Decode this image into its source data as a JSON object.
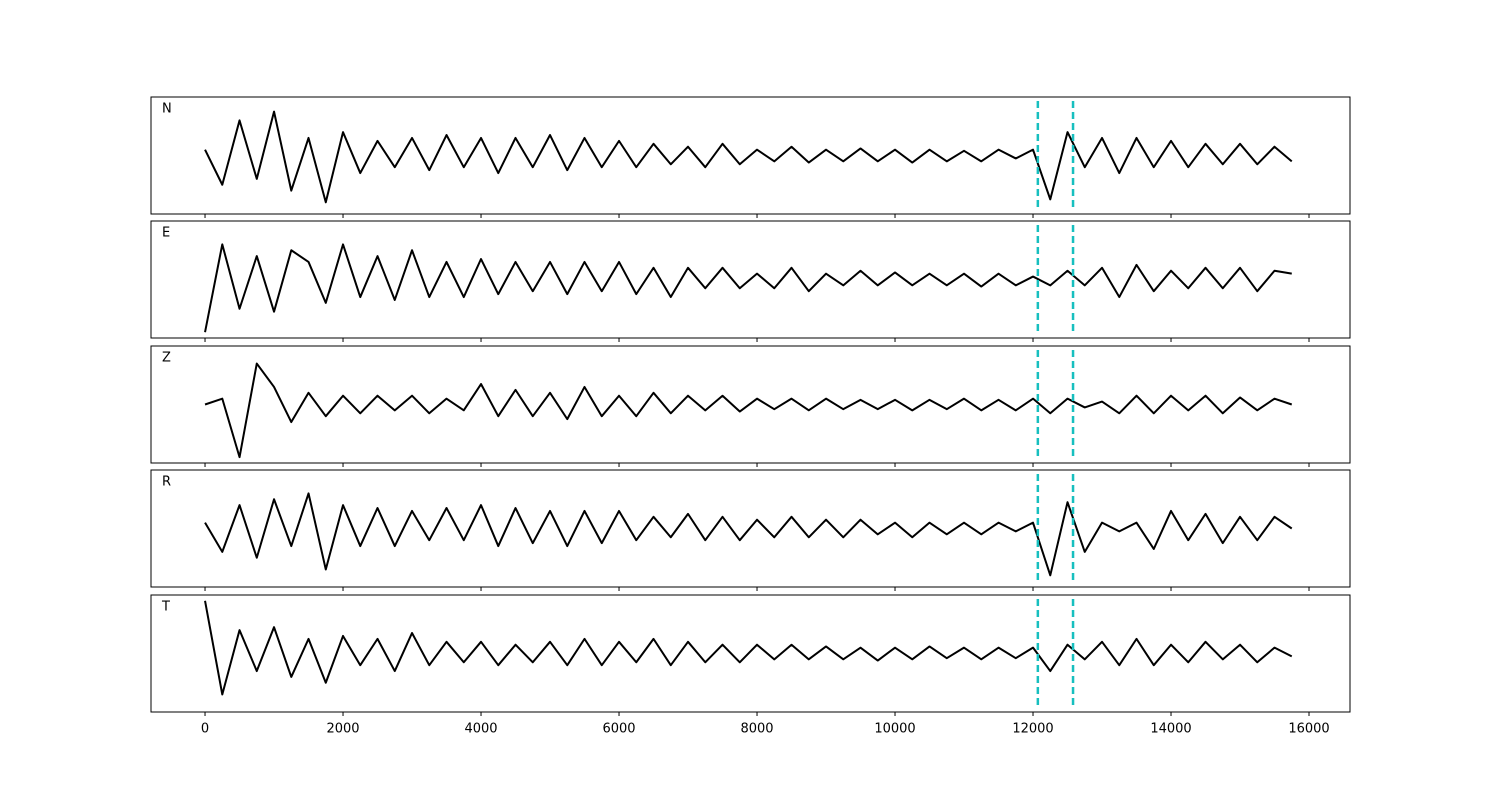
{
  "chart_data": [
    {
      "type": "line",
      "label": "N",
      "color": "#000000",
      "x": [
        0,
        250,
        500,
        750,
        1000,
        1250,
        1500,
        1750,
        2000,
        2250,
        2500,
        2750,
        3000,
        3250,
        3500,
        3750,
        4000,
        4250,
        4500,
        4750,
        5000,
        5250,
        5500,
        5750,
        6000,
        6250,
        6500,
        6750,
        7000,
        7250,
        7500,
        7750,
        8000,
        8250,
        8500,
        8750,
        9000,
        9250,
        9500,
        9750,
        10000,
        10250,
        10500,
        10750,
        11000,
        11250,
        11500,
        11750,
        12000,
        12250,
        12500,
        12750,
        13000,
        13250,
        13500,
        13750,
        14000,
        14250,
        14500,
        14750,
        15000,
        15250,
        15500,
        15750
      ],
      "values": [
        0.1,
        -0.5,
        0.6,
        -0.4,
        0.75,
        -0.6,
        0.3,
        -0.8,
        0.4,
        -0.3,
        0.25,
        -0.2,
        0.3,
        -0.25,
        0.35,
        -0.2,
        0.3,
        -0.3,
        0.3,
        -0.2,
        0.35,
        -0.25,
        0.3,
        -0.2,
        0.25,
        -0.2,
        0.2,
        -0.15,
        0.15,
        -0.2,
        0.2,
        -0.15,
        0.1,
        -0.1,
        0.15,
        -0.12,
        0.1,
        -0.1,
        0.12,
        -0.1,
        0.1,
        -0.12,
        0.1,
        -0.1,
        0.08,
        -0.1,
        0.1,
        -0.05,
        0.1,
        -0.75,
        0.4,
        -0.2,
        0.3,
        -0.3,
        0.3,
        -0.2,
        0.25,
        -0.2,
        0.2,
        -0.15,
        0.2,
        -0.15,
        0.15,
        -0.1
      ],
      "xlim": [
        -783,
        16594
      ],
      "ylim": [
        -1,
        1
      ],
      "xticks": [
        0,
        2000,
        4000,
        6000,
        8000,
        10000,
        12000,
        14000,
        16000
      ],
      "vlines": [
        12070,
        12580
      ],
      "vline_color": "#17bfbf"
    },
    {
      "type": "line",
      "label": "E",
      "color": "#000000",
      "x": [
        0,
        250,
        500,
        750,
        1000,
        1250,
        1500,
        1750,
        2000,
        2250,
        2500,
        2750,
        3000,
        3250,
        3500,
        3750,
        4000,
        4250,
        4500,
        4750,
        5000,
        5250,
        5500,
        5750,
        6000,
        6250,
        6500,
        6750,
        7000,
        7250,
        7500,
        7750,
        8000,
        8250,
        8500,
        8750,
        9000,
        9250,
        9500,
        9750,
        10000,
        10250,
        10500,
        10750,
        11000,
        11250,
        11500,
        11750,
        12000,
        12250,
        12500,
        12750,
        13000,
        13250,
        13500,
        13750,
        14000,
        14250,
        14500,
        14750,
        15000,
        15250,
        15500,
        15750
      ],
      "values": [
        -0.9,
        0.6,
        -0.5,
        0.4,
        -0.55,
        0.5,
        0.3,
        -0.4,
        0.6,
        -0.3,
        0.4,
        -0.35,
        0.5,
        -0.3,
        0.3,
        -0.3,
        0.35,
        -0.25,
        0.3,
        -0.2,
        0.3,
        -0.25,
        0.3,
        -0.2,
        0.3,
        -0.25,
        0.2,
        -0.3,
        0.2,
        -0.15,
        0.2,
        -0.15,
        0.1,
        -0.15,
        0.2,
        -0.2,
        0.1,
        -0.1,
        0.15,
        -0.1,
        0.12,
        -0.1,
        0.1,
        -0.1,
        0.1,
        -0.12,
        0.1,
        -0.1,
        0.05,
        -0.1,
        0.15,
        -0.1,
        0.2,
        -0.3,
        0.25,
        -0.2,
        0.15,
        -0.15,
        0.2,
        -0.15,
        0.2,
        -0.2,
        0.15,
        0.1
      ],
      "xlim": [
        -783,
        16594
      ],
      "ylim": [
        -1,
        1
      ],
      "xticks": [
        0,
        2000,
        4000,
        6000,
        8000,
        10000,
        12000,
        14000,
        16000
      ],
      "vlines": [
        12070,
        12580
      ],
      "vline_color": "#17bfbf"
    },
    {
      "type": "line",
      "label": "Z",
      "color": "#000000",
      "x": [
        0,
        250,
        500,
        750,
        1000,
        1250,
        1500,
        1750,
        2000,
        2250,
        2500,
        2750,
        3000,
        3250,
        3500,
        3750,
        4000,
        4250,
        4500,
        4750,
        5000,
        5250,
        5500,
        5750,
        6000,
        6250,
        6500,
        6750,
        7000,
        7250,
        7500,
        7750,
        8000,
        8250,
        8500,
        8750,
        9000,
        9250,
        9500,
        9750,
        10000,
        10250,
        10500,
        10750,
        11000,
        11250,
        11500,
        11750,
        12000,
        12250,
        12500,
        12750,
        13000,
        13250,
        13500,
        13750,
        14000,
        14250,
        14500,
        14750,
        15000,
        15250,
        15500,
        15750
      ],
      "values": [
        0.0,
        0.1,
        -0.9,
        0.7,
        0.3,
        -0.3,
        0.2,
        -0.2,
        0.15,
        -0.15,
        0.15,
        -0.1,
        0.15,
        -0.15,
        0.1,
        -0.1,
        0.35,
        -0.2,
        0.25,
        -0.2,
        0.2,
        -0.25,
        0.3,
        -0.2,
        0.15,
        -0.2,
        0.2,
        -0.15,
        0.15,
        -0.1,
        0.15,
        -0.12,
        0.1,
        -0.08,
        0.1,
        -0.1,
        0.1,
        -0.08,
        0.08,
        -0.08,
        0.08,
        -0.1,
        0.08,
        -0.08,
        0.1,
        -0.1,
        0.08,
        -0.1,
        0.1,
        -0.15,
        0.1,
        -0.05,
        0.05,
        -0.15,
        0.15,
        -0.15,
        0.15,
        -0.1,
        0.15,
        -0.15,
        0.12,
        -0.1,
        0.1,
        0.0
      ],
      "xlim": [
        -783,
        16594
      ],
      "ylim": [
        -1,
        1
      ],
      "xticks": [
        0,
        2000,
        4000,
        6000,
        8000,
        10000,
        12000,
        14000,
        16000
      ],
      "vlines": [
        12070,
        12580
      ],
      "vline_color": "#17bfbf"
    },
    {
      "type": "line",
      "label": "R",
      "color": "#000000",
      "x": [
        0,
        250,
        500,
        750,
        1000,
        1250,
        1500,
        1750,
        2000,
        2250,
        2500,
        2750,
        3000,
        3250,
        3500,
        3750,
        4000,
        4250,
        4500,
        4750,
        5000,
        5250,
        5500,
        5750,
        6000,
        6250,
        6500,
        6750,
        7000,
        7250,
        7500,
        7750,
        8000,
        8250,
        8500,
        8750,
        9000,
        9250,
        9500,
        9750,
        10000,
        10250,
        10500,
        10750,
        11000,
        11250,
        11500,
        11750,
        12000,
        12250,
        12500,
        12750,
        13000,
        13250,
        13500,
        13750,
        14000,
        14250,
        14500,
        14750,
        15000,
        15250,
        15500,
        15750
      ],
      "values": [
        0.1,
        -0.4,
        0.4,
        -0.5,
        0.5,
        -0.3,
        0.6,
        -0.7,
        0.4,
        -0.3,
        0.35,
        -0.3,
        0.3,
        -0.2,
        0.35,
        -0.2,
        0.4,
        -0.3,
        0.35,
        -0.25,
        0.3,
        -0.3,
        0.3,
        -0.25,
        0.3,
        -0.2,
        0.2,
        -0.15,
        0.25,
        -0.2,
        0.2,
        -0.2,
        0.15,
        -0.15,
        0.2,
        -0.15,
        0.15,
        -0.15,
        0.15,
        -0.1,
        0.1,
        -0.15,
        0.1,
        -0.1,
        0.1,
        -0.1,
        0.1,
        -0.05,
        0.1,
        -0.8,
        0.45,
        -0.4,
        0.1,
        -0.05,
        0.1,
        -0.35,
        0.3,
        -0.2,
        0.25,
        -0.25,
        0.2,
        -0.2,
        0.2,
        0.0
      ],
      "xlim": [
        -783,
        16594
      ],
      "ylim": [
        -1,
        1
      ],
      "xticks": [
        0,
        2000,
        4000,
        6000,
        8000,
        10000,
        12000,
        14000,
        16000
      ],
      "vlines": [
        12070,
        12580
      ],
      "vline_color": "#17bfbf"
    },
    {
      "type": "line",
      "label": "T",
      "color": "#000000",
      "x": [
        0,
        250,
        500,
        750,
        1000,
        1250,
        1500,
        1750,
        2000,
        2250,
        2500,
        2750,
        3000,
        3250,
        3500,
        3750,
        4000,
        4250,
        4500,
        4750,
        5000,
        5250,
        5500,
        5750,
        6000,
        6250,
        6500,
        6750,
        7000,
        7250,
        7500,
        7750,
        8000,
        8250,
        8500,
        8750,
        9000,
        9250,
        9500,
        9750,
        10000,
        10250,
        10500,
        10750,
        11000,
        11250,
        11500,
        11750,
        12000,
        12250,
        12500,
        12750,
        13000,
        13250,
        13500,
        13750,
        14000,
        14250,
        14500,
        14750,
        15000,
        15250,
        15500,
        15750
      ],
      "values": [
        0.9,
        -0.7,
        0.4,
        -0.3,
        0.45,
        -0.4,
        0.25,
        -0.5,
        0.3,
        -0.2,
        0.25,
        -0.3,
        0.35,
        -0.2,
        0.2,
        -0.15,
        0.2,
        -0.2,
        0.15,
        -0.15,
        0.2,
        -0.2,
        0.25,
        -0.2,
        0.2,
        -0.15,
        0.25,
        -0.2,
        0.2,
        -0.15,
        0.15,
        -0.15,
        0.15,
        -0.1,
        0.15,
        -0.1,
        0.12,
        -0.1,
        0.1,
        -0.12,
        0.1,
        -0.1,
        0.12,
        -0.08,
        0.1,
        -0.1,
        0.1,
        -0.08,
        0.1,
        -0.3,
        0.15,
        -0.1,
        0.2,
        -0.2,
        0.25,
        -0.2,
        0.15,
        -0.15,
        0.2,
        -0.1,
        0.15,
        -0.15,
        0.1,
        -0.05
      ],
      "xlim": [
        -783,
        16594
      ],
      "ylim": [
        -1,
        1
      ],
      "xticks": [
        0,
        2000,
        4000,
        6000,
        8000,
        10000,
        12000,
        14000,
        16000
      ],
      "vlines": [
        12070,
        12580
      ],
      "vline_color": "#17bfbf"
    }
  ]
}
